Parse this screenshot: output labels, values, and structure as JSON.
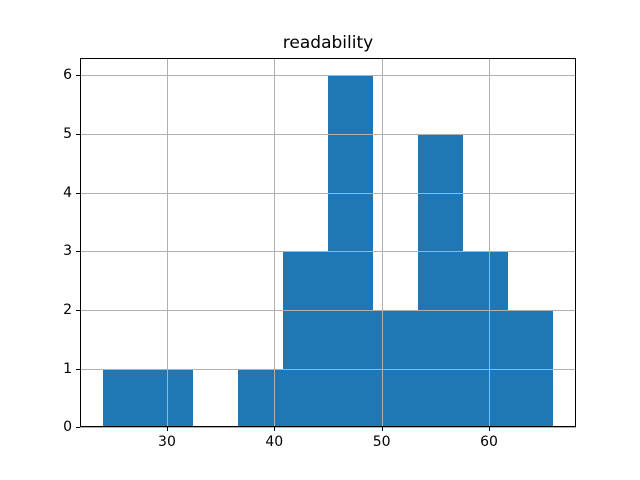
{
  "chart_data": {
    "type": "bar",
    "subtype": "histogram",
    "title": "readability",
    "bin_edges": [
      24,
      28.2,
      32.4,
      36.6,
      40.8,
      45,
      49.2,
      53.4,
      57.6,
      61.8,
      66
    ],
    "counts": [
      1,
      1,
      0,
      1,
      3,
      6,
      2,
      5,
      3,
      2
    ],
    "x_ticks": [
      30,
      40,
      50,
      60
    ],
    "y_ticks": [
      0,
      1,
      2,
      3,
      4,
      5,
      6
    ],
    "xlim": [
      21.9,
      68.1
    ],
    "ylim": [
      0,
      6.3
    ],
    "xlabel": "",
    "ylabel": "",
    "grid": true,
    "grid_above_bars": true,
    "legend": "none",
    "bar_color": "#1f77b4",
    "grid_color": "#b0b0b0",
    "spine_color": "#000000",
    "text_color": "#000000",
    "background_color": "#ffffff"
  }
}
